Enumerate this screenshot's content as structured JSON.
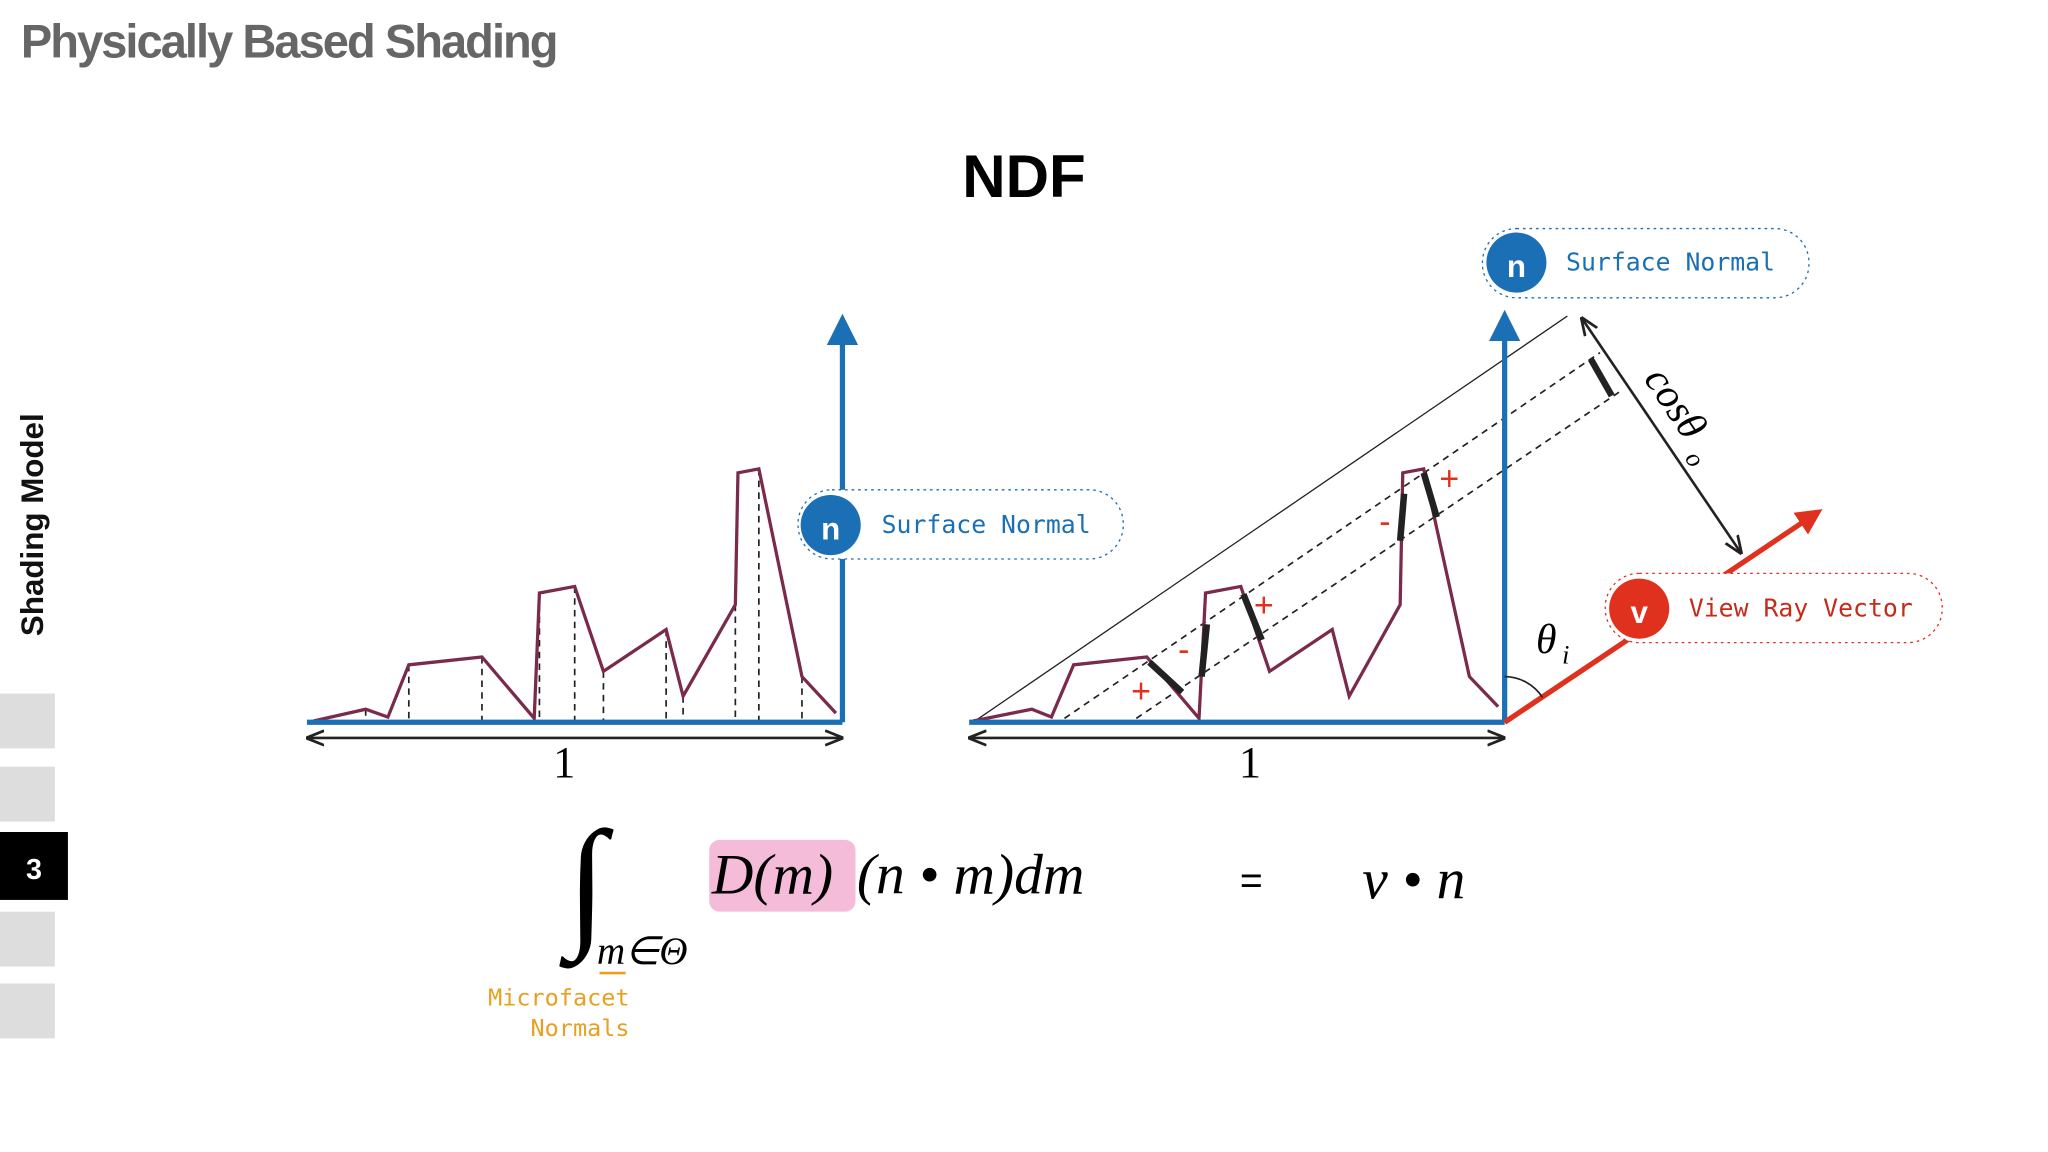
{
  "header": {
    "title": "Physically Based Shading"
  },
  "sidebar": {
    "section": "Shading Model",
    "page": "3"
  },
  "heading": "NDF",
  "left_diagram": {
    "normal_icon": "n",
    "normal_label": "Surface Normal",
    "width_label": "1"
  },
  "right_diagram": {
    "normal_icon": "n",
    "normal_label": "Surface Normal",
    "view_icon": "v",
    "view_label": "View Ray Vector",
    "width_label": "1",
    "cos_label": "cosθ",
    "cos_sub": "o",
    "theta_label": "θ",
    "theta_sub": "i",
    "signs": [
      "+",
      "-",
      "+",
      "-",
      "+"
    ]
  },
  "formula": {
    "integral": "∫",
    "domain": "m∈Θ",
    "ndf": "D(m)",
    "rest": "(n • m)dm",
    "equals": "=",
    "rhs": "v • n",
    "note_line1": "Microfacet",
    "note_line2": "Normals"
  }
}
